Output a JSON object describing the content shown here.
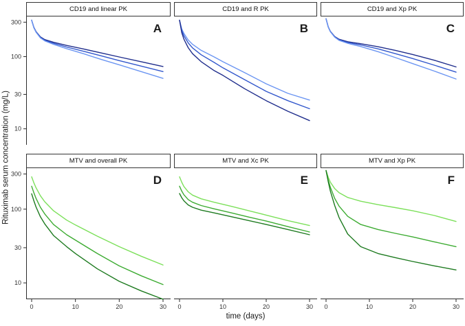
{
  "figure": {
    "kind": "faceted line chart, 2 rows x 3 columns, white theme, no gridlines",
    "colors": {
      "axis": "#2a2a2a",
      "strip_border": "#333333",
      "dark_blue": "#1f2d8c",
      "medium_blue": "#3257cc",
      "light_blue": "#6b95f2",
      "dark_green": "#1d7a1f",
      "medium_green": "#3cab31",
      "light_green": "#7ce05a"
    }
  },
  "chart_data": {
    "type": "line",
    "title": "",
    "xlabel": "time (days)",
    "ylabel": "Rituximab serum concentration (mg/L)",
    "x_scale": "linear",
    "y_scale": "log10",
    "xlim": [
      0,
      30
    ],
    "ylim": [
      6,
      360
    ],
    "x_ticks": [
      0,
      10,
      20,
      30
    ],
    "y_ticks": [
      300,
      100,
      30,
      10
    ],
    "grid": false,
    "legend": "none",
    "facets": "2x3; y-axis labels on left column only, x-axis labels on bottom row only",
    "panels": [
      {
        "id": "A",
        "title": "CD19 and linear PK",
        "letter": "A",
        "row": 0,
        "col": 0,
        "series": [
          {
            "name": "dark-blue",
            "color": "#1f2d8c",
            "points": [
              [
                0,
                320
              ],
              [
                0.5,
                255
              ],
              [
                1,
                222
              ],
              [
                2,
                188
              ],
              [
                3,
                172
              ],
              [
                5,
                158
              ],
              [
                8,
                143
              ],
              [
                12,
                127
              ],
              [
                16,
                112
              ],
              [
                20,
                99
              ],
              [
                25,
                85
              ],
              [
                30,
                73
              ]
            ]
          },
          {
            "name": "medium-blue",
            "color": "#3257cc",
            "points": [
              [
                0,
                320
              ],
              [
                0.5,
                253
              ],
              [
                1,
                220
              ],
              [
                2,
                185
              ],
              [
                3,
                168
              ],
              [
                5,
                153
              ],
              [
                8,
                136
              ],
              [
                12,
                118
              ],
              [
                16,
                102
              ],
              [
                20,
                88
              ],
              [
                25,
                74
              ],
              [
                30,
                62
              ]
            ]
          },
          {
            "name": "light-blue",
            "color": "#6b95f2",
            "points": [
              [
                0,
                320
              ],
              [
                0.5,
                251
              ],
              [
                1,
                218
              ],
              [
                2,
                182
              ],
              [
                3,
                165
              ],
              [
                5,
                148
              ],
              [
                8,
                129
              ],
              [
                12,
                109
              ],
              [
                16,
                91
              ],
              [
                20,
                77
              ],
              [
                25,
                62
              ],
              [
                30,
                50
              ]
            ]
          }
        ]
      },
      {
        "id": "B",
        "title": "CD19 and R PK",
        "letter": "B",
        "row": 0,
        "col": 1,
        "series": [
          {
            "name": "light-blue",
            "color": "#6b95f2",
            "points": [
              [
                0,
                320
              ],
              [
                0.5,
                242
              ],
              [
                1,
                210
              ],
              [
                2,
                170
              ],
              [
                3,
                148
              ],
              [
                5,
                122
              ],
              [
                8,
                99
              ],
              [
                10,
                85
              ],
              [
                15,
                60
              ],
              [
                20,
                42
              ],
              [
                25,
                31
              ],
              [
                30,
                25
              ]
            ]
          },
          {
            "name": "medium-blue",
            "color": "#3257cc",
            "points": [
              [
                0,
                320
              ],
              [
                0.5,
                230
              ],
              [
                1,
                195
              ],
              [
                2,
                155
              ],
              [
                3,
                132
              ],
              [
                5,
                106
              ],
              [
                8,
                83
              ],
              [
                10,
                70
              ],
              [
                15,
                48
              ],
              [
                20,
                33
              ],
              [
                25,
                24.5
              ],
              [
                30,
                19
              ]
            ]
          },
          {
            "name": "dark-blue",
            "color": "#1f2d8c",
            "points": [
              [
                0,
                320
              ],
              [
                0.5,
                215
              ],
              [
                1,
                175
              ],
              [
                2,
                133
              ],
              [
                3,
                110
              ],
              [
                5,
                85
              ],
              [
                8,
                64
              ],
              [
                10,
                55
              ],
              [
                15,
                36
              ],
              [
                20,
                24.5
              ],
              [
                25,
                17.5
              ],
              [
                30,
                13
              ]
            ]
          }
        ]
      },
      {
        "id": "C",
        "title": "CD19 and Xp PK",
        "letter": "C",
        "row": 0,
        "col": 2,
        "series": [
          {
            "name": "dark-blue",
            "color": "#1f2d8c",
            "points": [
              [
                0,
                335
              ],
              [
                0.5,
                258
              ],
              [
                1,
                224
              ],
              [
                2,
                190
              ],
              [
                3,
                174
              ],
              [
                5,
                161
              ],
              [
                8,
                151
              ],
              [
                12,
                137
              ],
              [
                16,
                122
              ],
              [
                20,
                107
              ],
              [
                25,
                89
              ],
              [
                30,
                72
              ]
            ]
          },
          {
            "name": "medium-blue",
            "color": "#3257cc",
            "points": [
              [
                0,
                335
              ],
              [
                0.5,
                257
              ],
              [
                1,
                222
              ],
              [
                2,
                188
              ],
              [
                3,
                171
              ],
              [
                5,
                157
              ],
              [
                8,
                145
              ],
              [
                12,
                128
              ],
              [
                16,
                110
              ],
              [
                20,
                94
              ],
              [
                25,
                76
              ],
              [
                30,
                61
              ]
            ]
          },
          {
            "name": "light-blue",
            "color": "#6b95f2",
            "points": [
              [
                0,
                335
              ],
              [
                0.5,
                256
              ],
              [
                1,
                221
              ],
              [
                2,
                186
              ],
              [
                3,
                168
              ],
              [
                5,
                153
              ],
              [
                8,
                138
              ],
              [
                12,
                117
              ],
              [
                16,
                97
              ],
              [
                20,
                80
              ],
              [
                25,
                63
              ],
              [
                30,
                49
              ]
            ]
          }
        ]
      },
      {
        "id": "D",
        "title": "MTV and overall PK",
        "letter": "D",
        "row": 1,
        "col": 0,
        "series": [
          {
            "name": "light-green",
            "color": "#7ce05a",
            "points": [
              [
                0,
                275
              ],
              [
                0.5,
                228
              ],
              [
                1,
                195
              ],
              [
                2,
                152
              ],
              [
                3,
                126
              ],
              [
                5,
                95
              ],
              [
                8,
                71
              ],
              [
                10,
                61
              ],
              [
                15,
                43
              ],
              [
                20,
                31
              ],
              [
                25,
                23
              ],
              [
                30,
                17.5
              ]
            ]
          },
          {
            "name": "medium-green",
            "color": "#3cab31",
            "points": [
              [
                0,
                205
              ],
              [
                0.5,
                167
              ],
              [
                1,
                140
              ],
              [
                2,
                106
              ],
              [
                3,
                86
              ],
              [
                5,
                62
              ],
              [
                8,
                45
              ],
              [
                10,
                38
              ],
              [
                15,
                25
              ],
              [
                20,
                17
              ],
              [
                25,
                12.5
              ],
              [
                30,
                9.5
              ]
            ]
          },
          {
            "name": "dark-green",
            "color": "#1d7a1f",
            "points": [
              [
                0,
                162
              ],
              [
                0.5,
                130
              ],
              [
                1,
                107
              ],
              [
                2,
                79
              ],
              [
                3,
                63
              ],
              [
                5,
                44
              ],
              [
                8,
                31
              ],
              [
                10,
                25
              ],
              [
                15,
                15.5
              ],
              [
                20,
                10.5
              ],
              [
                25,
                7.8
              ],
              [
                30,
                6
              ]
            ]
          }
        ]
      },
      {
        "id": "E",
        "title": "MTV and Xc PK",
        "letter": "E",
        "row": 1,
        "col": 1,
        "series": [
          {
            "name": "light-green",
            "color": "#7ce05a",
            "points": [
              [
                0,
                275
              ],
              [
                0.5,
                232
              ],
              [
                1,
                203
              ],
              [
                2,
                172
              ],
              [
                3,
                155
              ],
              [
                5,
                138
              ],
              [
                8,
                124
              ],
              [
                12,
                109
              ],
              [
                16,
                95
              ],
              [
                20,
                83
              ],
              [
                25,
                70
              ],
              [
                30,
                60
              ]
            ]
          },
          {
            "name": "medium-green",
            "color": "#3cab31",
            "points": [
              [
                0,
                205
              ],
              [
                0.5,
                176
              ],
              [
                1,
                157
              ],
              [
                2,
                135
              ],
              [
                3,
                124
              ],
              [
                5,
                112
              ],
              [
                8,
                101
              ],
              [
                12,
                89
              ],
              [
                16,
                78
              ],
              [
                20,
                69
              ],
              [
                25,
                58
              ],
              [
                30,
                49
              ]
            ]
          },
          {
            "name": "dark-green",
            "color": "#1d7a1f",
            "points": [
              [
                0,
                163
              ],
              [
                0.5,
                143
              ],
              [
                1,
                130
              ],
              [
                2,
                114
              ],
              [
                3,
                106
              ],
              [
                5,
                97
              ],
              [
                8,
                89
              ],
              [
                12,
                79
              ],
              [
                16,
                70
              ],
              [
                20,
                62
              ],
              [
                25,
                53
              ],
              [
                30,
                45
              ]
            ]
          }
        ]
      },
      {
        "id": "F",
        "title": "MTV and Xp PK",
        "letter": "F",
        "row": 1,
        "col": 2,
        "series": [
          {
            "name": "light-green",
            "color": "#7ce05a",
            "points": [
              [
                0,
                335
              ],
              [
                0.5,
                270
              ],
              [
                1,
                232
              ],
              [
                2,
                190
              ],
              [
                3,
                167
              ],
              [
                5,
                144
              ],
              [
                8,
                128
              ],
              [
                12,
                115
              ],
              [
                16,
                105
              ],
              [
                20,
                95
              ],
              [
                25,
                82
              ],
              [
                30,
                68
              ]
            ]
          },
          {
            "name": "medium-green",
            "color": "#3cab31",
            "points": [
              [
                0,
                335
              ],
              [
                0.5,
                248
              ],
              [
                1,
                198
              ],
              [
                2,
                140
              ],
              [
                3,
                110
              ],
              [
                5,
                80
              ],
              [
                8,
                62
              ],
              [
                12,
                53
              ],
              [
                16,
                47
              ],
              [
                20,
                42
              ],
              [
                25,
                36
              ],
              [
                30,
                31
              ]
            ]
          },
          {
            "name": "dark-green",
            "color": "#1d7a1f",
            "points": [
              [
                0,
                335
              ],
              [
                0.5,
                235
              ],
              [
                1,
                175
              ],
              [
                2,
                112
              ],
              [
                3,
                77
              ],
              [
                5,
                46
              ],
              [
                8,
                31
              ],
              [
                12,
                25
              ],
              [
                16,
                22
              ],
              [
                20,
                19.5
              ],
              [
                25,
                17
              ],
              [
                30,
                15
              ]
            ]
          }
        ]
      }
    ]
  }
}
